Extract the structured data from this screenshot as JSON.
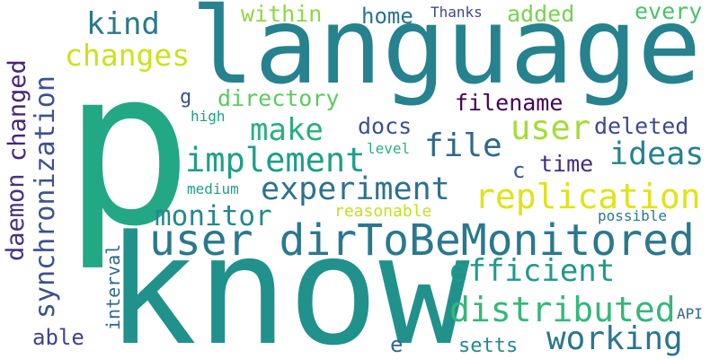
{
  "words": [
    {
      "text": "language",
      "color": "#26828e"
    },
    {
      "text": "p",
      "color": "#22a884"
    },
    {
      "text": "know",
      "color": "#21918c"
    },
    {
      "text": "user dirToBeMonitored",
      "color": "#2a788e"
    },
    {
      "text": "replication",
      "color": "#dfe318"
    },
    {
      "text": "experiment",
      "color": "#2c728e"
    },
    {
      "text": "implement",
      "color": "#1f9e89"
    },
    {
      "text": "distributed",
      "color": "#35b779"
    },
    {
      "text": "efficient",
      "color": "#1f9a8a"
    },
    {
      "text": "monitor",
      "color": "#23898e"
    },
    {
      "text": "working",
      "color": "#2a768e"
    },
    {
      "text": "synchronization",
      "color": "#3b528b"
    },
    {
      "text": "daemon",
      "color": "#46327e"
    },
    {
      "text": "changed",
      "color": "#482576"
    },
    {
      "text": "file",
      "color": "#31688e"
    },
    {
      "text": "ideas",
      "color": "#26828e"
    },
    {
      "text": "user",
      "color": "#a5db36"
    },
    {
      "text": "make",
      "color": "#29af7f"
    },
    {
      "text": "changes",
      "color": "#cde11d"
    },
    {
      "text": "kind",
      "color": "#2a788e"
    },
    {
      "text": "directory",
      "color": "#5ec962"
    },
    {
      "text": "filename",
      "color": "#440154"
    },
    {
      "text": "docs",
      "color": "#3b528b"
    },
    {
      "text": "deleted",
      "color": "#3e4989"
    },
    {
      "text": "time",
      "color": "#472d7b"
    },
    {
      "text": "within",
      "color": "#8fd744"
    },
    {
      "text": "home",
      "color": "#2c728e"
    },
    {
      "text": "added",
      "color": "#7ad151"
    },
    {
      "text": "every",
      "color": "#4ac16d"
    },
    {
      "text": "Thanks",
      "color": "#3e4989"
    },
    {
      "text": "reasonable",
      "color": "#c2df23"
    },
    {
      "text": "possible",
      "color": "#2a788e"
    },
    {
      "text": "interval",
      "color": "#31688e"
    },
    {
      "text": "able",
      "color": "#414487"
    },
    {
      "text": "setts",
      "color": "#23898e"
    },
    {
      "text": "API",
      "color": "#31688e"
    },
    {
      "text": "e",
      "color": "#31688e"
    },
    {
      "text": "c",
      "color": "#39568c"
    },
    {
      "text": "g",
      "color": "#3b528b"
    },
    {
      "text": "high",
      "color": "#1f9e89"
    },
    {
      "text": "level",
      "color": "#2ab07f"
    },
    {
      "text": "medium",
      "color": "#1f9e89"
    }
  ]
}
